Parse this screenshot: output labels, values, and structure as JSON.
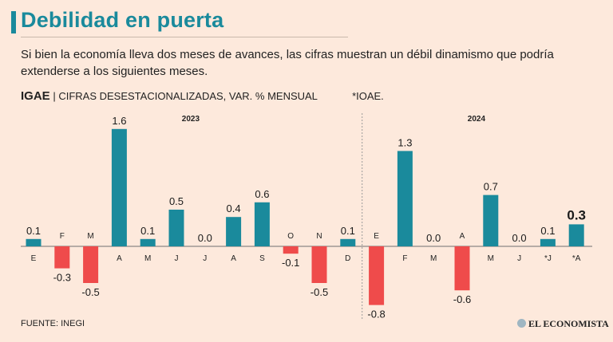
{
  "header": {
    "title": "Debilidad en puerta",
    "subtitle": "Si bien la economía lleva dos meses de avances, las cifras muestran un débil dinamismo que podría extenderse a los siguientes meses."
  },
  "series_label": {
    "name": "IGAE",
    "separator": "|",
    "description": "CIFRAS DESESTACIONALIZADAS, VAR. % MENSUAL",
    "note": "*IOAE."
  },
  "footer": {
    "source": "FUENTE: INEGI",
    "logo_text": "EL ECONOMISTA"
  },
  "colors": {
    "positive": "#1a8a9c",
    "negative": "#ef4b4b",
    "title": "#1a8a9c",
    "background": "#fde9dc"
  },
  "chart_data": {
    "type": "bar",
    "year_labels": [
      "2023",
      "2024"
    ],
    "categories": [
      "E",
      "F",
      "M",
      "A",
      "M",
      "J",
      "J",
      "A",
      "S",
      "O",
      "N",
      "D",
      "E",
      "F",
      "M",
      "A",
      "M",
      "J",
      "*J",
      "*A"
    ],
    "years": [
      "2023",
      "2023",
      "2023",
      "2023",
      "2023",
      "2023",
      "2023",
      "2023",
      "2023",
      "2023",
      "2023",
      "2023",
      "2024",
      "2024",
      "2024",
      "2024",
      "2024",
      "2024",
      "2024",
      "2024"
    ],
    "values": [
      0.1,
      -0.3,
      -0.5,
      1.6,
      0.1,
      0.5,
      0.0,
      0.4,
      0.6,
      -0.1,
      -0.5,
      0.1,
      -0.8,
      1.3,
      0.0,
      -0.6,
      0.7,
      0.0,
      0.1,
      0.3
    ],
    "value_labels": [
      "0.1",
      "-0.3",
      "-0.5",
      "1.6",
      "0.1",
      "0.5",
      "0.0",
      "0.4",
      "0.6",
      "-0.1",
      "-0.5",
      "0.1",
      "-0.8",
      "1.3",
      "0.0",
      "-0.6",
      "0.7",
      "0.0",
      "0.1",
      "0.3"
    ],
    "highlight_last": true,
    "grid": false,
    "title": "",
    "xlabel": "",
    "ylabel": ""
  }
}
